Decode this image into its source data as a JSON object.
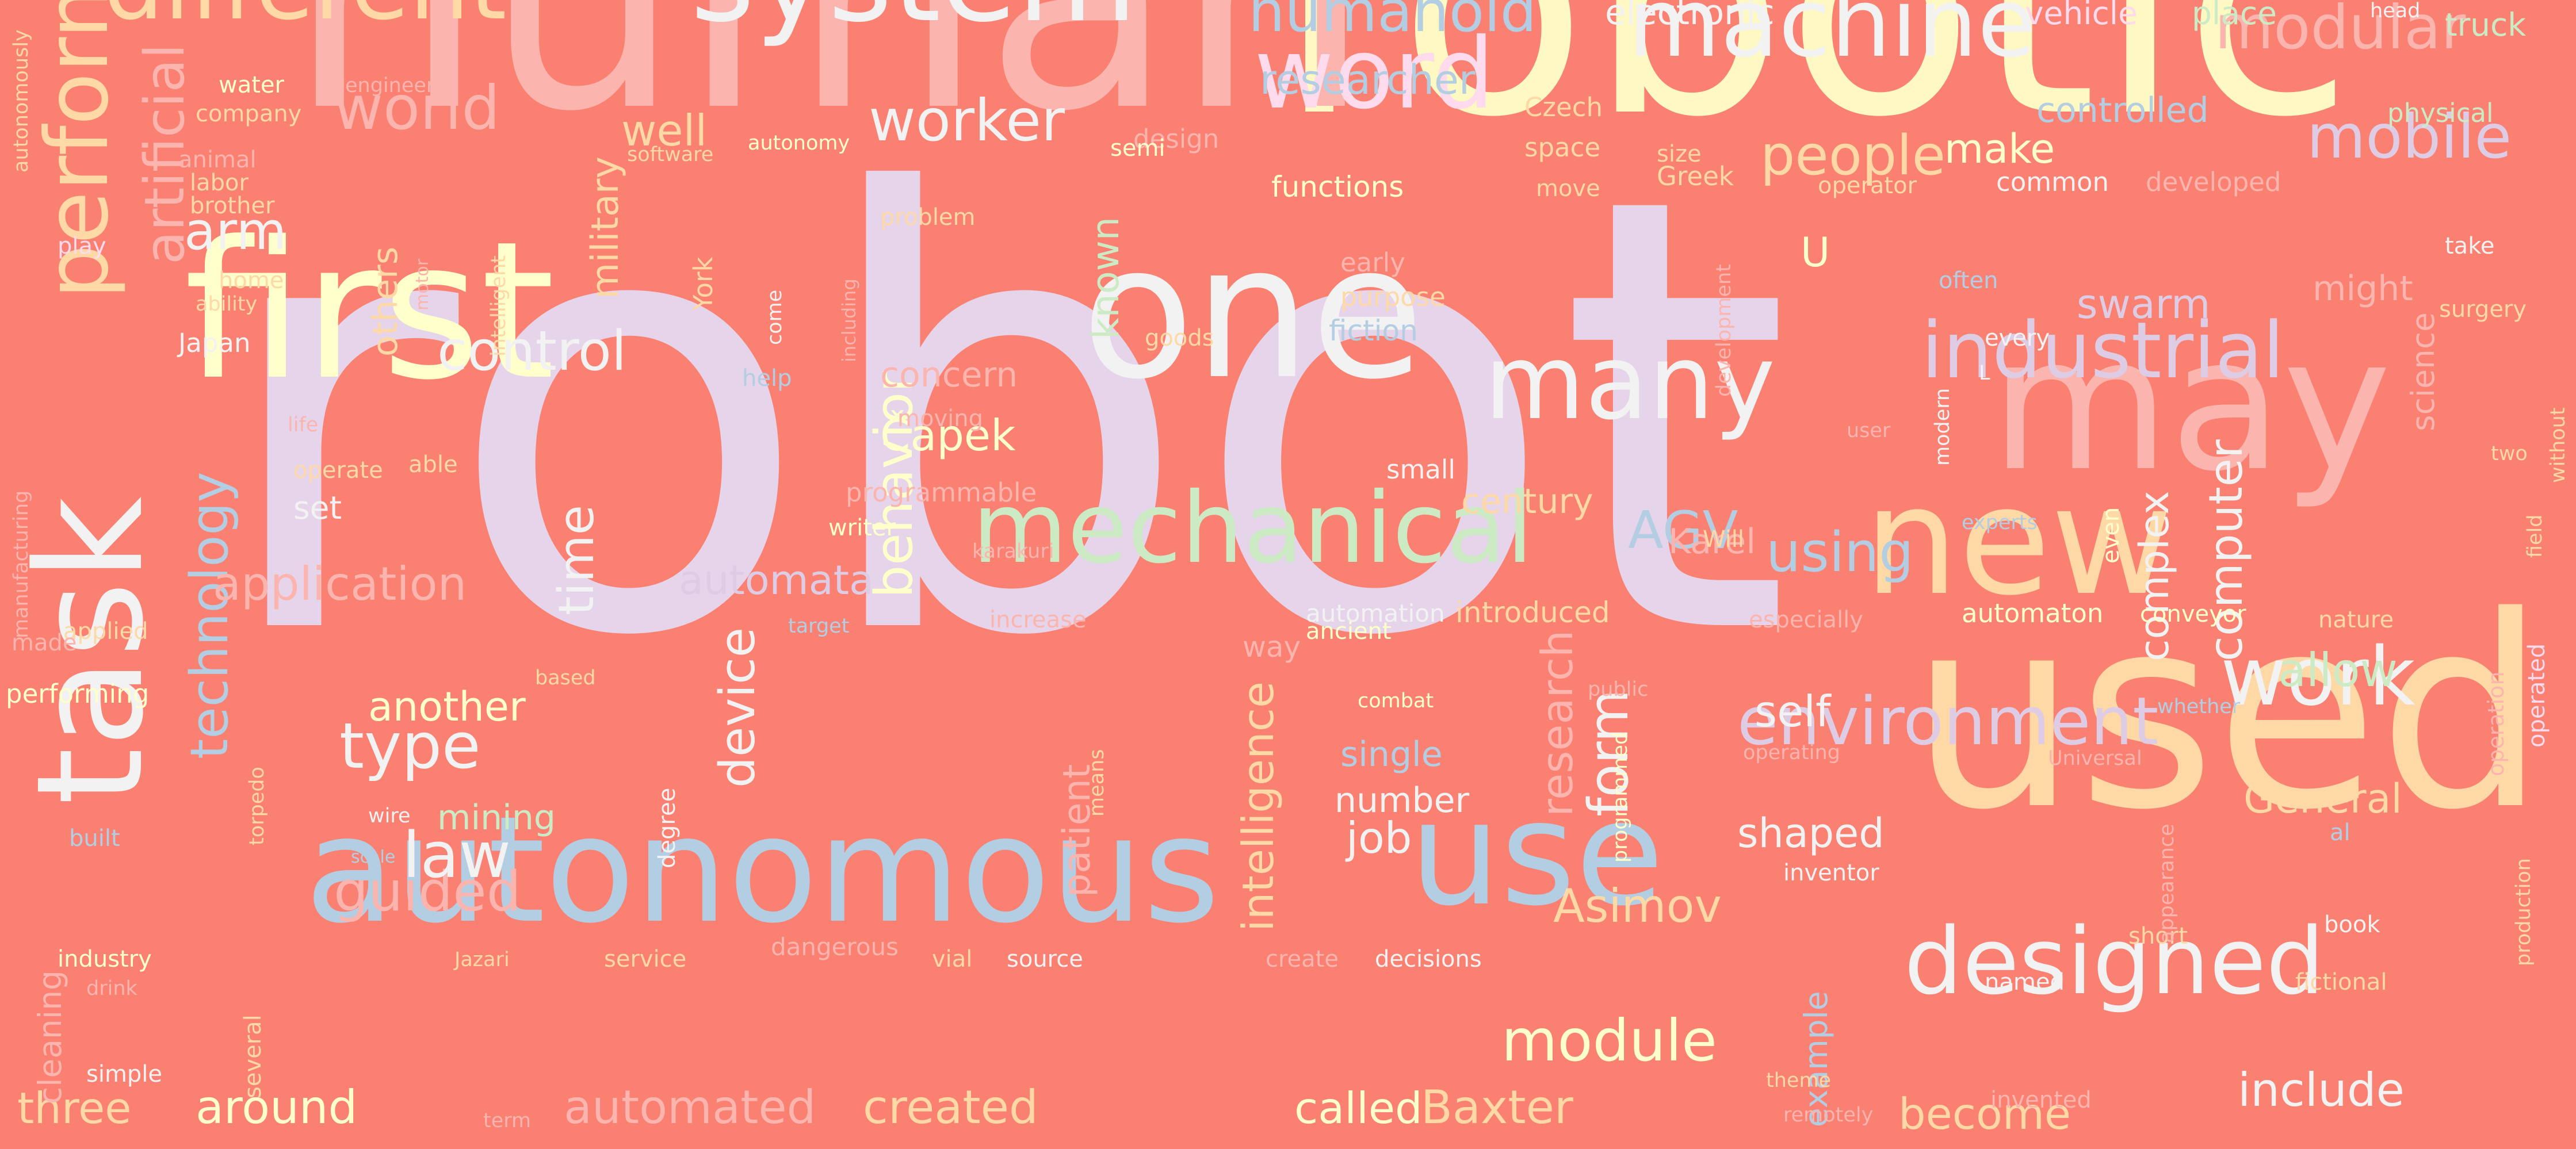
{
  "words": [
    {
      "text": "robot",
      "color": "#e6d5ea"
    },
    {
      "text": "robotic",
      "color": "#fef9c3"
    },
    {
      "text": "human",
      "color": "#fbb4ae"
    },
    {
      "text": "used",
      "color": "#fed9a6"
    },
    {
      "text": "first",
      "color": "#ffffcc"
    },
    {
      "text": "one",
      "color": "#f2f2f2"
    },
    {
      "text": "autonomous",
      "color": "#b3cde3"
    },
    {
      "text": "may",
      "color": "#fbb4ae"
    },
    {
      "text": "use",
      "color": "#b3cde3"
    },
    {
      "text": "new",
      "color": "#fed9a6"
    },
    {
      "text": "system",
      "color": "#f2f2f2"
    },
    {
      "text": "task",
      "color": "#f2f2f2"
    },
    {
      "text": "machine",
      "color": "#f2f2f2"
    },
    {
      "text": "designed",
      "color": "#f2f2f2"
    },
    {
      "text": "mechanical",
      "color": "#ccebc5"
    },
    {
      "text": "different",
      "color": "#fed9a6"
    },
    {
      "text": "perform",
      "color": "#fed9a6"
    },
    {
      "text": "word",
      "color": "#fddaec"
    },
    {
      "text": "many",
      "color": "#f2f2f2"
    },
    {
      "text": "industrial",
      "color": "#decbe4"
    },
    {
      "text": "work",
      "color": "#f2f2f2"
    },
    {
      "text": "environment",
      "color": "#decbe4"
    },
    {
      "text": "modular",
      "color": "#fbb4ae"
    },
    {
      "text": "mobile",
      "color": "#decbe4"
    },
    {
      "text": "humanoid",
      "color": "#b3cde3"
    },
    {
      "text": "module",
      "color": "#ffffcc"
    },
    {
      "text": "world",
      "color": "#fbb4ae"
    },
    {
      "text": "artificial",
      "color": "#fbb4ae"
    },
    {
      "text": "control",
      "color": "#f2f2f2"
    },
    {
      "text": "automated",
      "color": "#fbb4ae"
    },
    {
      "text": "guided",
      "color": "#fbb4ae"
    },
    {
      "text": "technology",
      "color": "#b3cde3"
    },
    {
      "text": "people",
      "color": "#fed9a6"
    },
    {
      "text": "behavior",
      "color": "#ffffcc"
    },
    {
      "text": "include",
      "color": "#f2f2f2"
    },
    {
      "text": "worker",
      "color": "#f2f2f2"
    },
    {
      "text": "application",
      "color": "#fbb4ae"
    },
    {
      "text": "time",
      "color": "#f2f2f2"
    },
    {
      "text": "type",
      "color": "#f2f2f2"
    },
    {
      "text": "law",
      "color": "#f2f2f2"
    },
    {
      "text": "created",
      "color": "#fed9a6"
    },
    {
      "text": "around",
      "color": "#ffffcc"
    },
    {
      "text": "AGV",
      "color": "#b3cde3"
    },
    {
      "text": "using",
      "color": "#b3cde3"
    },
    {
      "text": "computer",
      "color": "#f2f2f2"
    },
    {
      "text": "form",
      "color": "#f2f2f2"
    },
    {
      "text": "device",
      "color": "#f2f2f2"
    },
    {
      "text": "research",
      "color": "#fbb4ae"
    },
    {
      "text": "Baxter",
      "color": "#fed9a6"
    },
    {
      "text": "called",
      "color": "#ffffcc"
    },
    {
      "text": "Asimov",
      "color": "#fed9a6"
    },
    {
      "text": "researcher",
      "color": "#b3cde3"
    },
    {
      "text": "become",
      "color": "#fed9a6"
    },
    {
      "text": "arm",
      "color": "#f2f2f2"
    },
    {
      "text": "intelligence",
      "color": "#fed9a6"
    },
    {
      "text": "automata",
      "color": "#decbe4"
    },
    {
      "text": "three",
      "color": "#fed9a6"
    },
    {
      "text": "Čapek",
      "color": "#ffffcc"
    },
    {
      "text": "another",
      "color": "#ffffcc"
    },
    {
      "text": "self",
      "color": "#f2f2f2"
    },
    {
      "text": "allow",
      "color": "#ccebc5"
    },
    {
      "text": "job",
      "color": "#f2f2f2"
    },
    {
      "text": "well",
      "color": "#fed9a6"
    },
    {
      "text": "swarm",
      "color": "#decbe4"
    },
    {
      "text": "make",
      "color": "#ffffcc"
    },
    {
      "text": "military",
      "color": "#fed9a6"
    },
    {
      "text": "shaped",
      "color": "#f2f2f2"
    },
    {
      "text": "complex",
      "color": "#f2f2f2"
    },
    {
      "text": "General",
      "color": "#fed9a6"
    },
    {
      "text": "known",
      "color": "#ccebc5"
    },
    {
      "text": "Karel",
      "color": "#fbb4ae"
    },
    {
      "text": "mining",
      "color": "#ccebc5"
    },
    {
      "text": "concern",
      "color": "#fbb4ae"
    },
    {
      "text": "others",
      "color": "#fed9a6"
    },
    {
      "text": "patient",
      "color": "#fbb4ae"
    },
    {
      "text": "example",
      "color": "#b3cde3"
    },
    {
      "text": "century",
      "color": "#fed9a6"
    },
    {
      "text": "number",
      "color": "#f2f2f2"
    },
    {
      "text": "single",
      "color": "#b3cde3"
    },
    {
      "text": "electronic",
      "color": "#f2f2f2"
    },
    {
      "text": "controlled",
      "color": "#b3cde3"
    },
    {
      "text": "might",
      "color": "#fbb4ae"
    },
    {
      "text": "truck",
      "color": "#ccebc5"
    },
    {
      "text": "place",
      "color": "#ccebc5"
    },
    {
      "text": "vehicle",
      "color": "#fddaec"
    },
    {
      "text": "set",
      "color": "#f2f2f2"
    },
    {
      "text": "cleaning",
      "color": "#fbb4ae"
    },
    {
      "text": "physical",
      "color": "#ccebc5"
    },
    {
      "text": "science",
      "color": "#fbb4ae"
    },
    {
      "text": "U",
      "color": "#ffffcc"
    },
    {
      "text": "fiction",
      "color": "#b3cde3"
    },
    {
      "text": "purpose",
      "color": "#fed9a6"
    },
    {
      "text": "early",
      "color": "#fbb4ae"
    },
    {
      "text": "functions",
      "color": "#ffffcc"
    },
    {
      "text": "automation",
      "color": "#f2f2f2"
    },
    {
      "text": "introduced",
      "color": "#fed9a6"
    },
    {
      "text": "automaton",
      "color": "#ffffcc"
    },
    {
      "text": "conveyor",
      "color": "#ffffcc"
    },
    {
      "text": "way",
      "color": "#fbb4ae"
    },
    {
      "text": "Japan",
      "color": "#f2f2f2"
    },
    {
      "text": "York",
      "color": "#fed9a6"
    },
    {
      "text": "design",
      "color": "#fbb4ae"
    },
    {
      "text": "space",
      "color": "#fed9a6"
    },
    {
      "text": "Czech",
      "color": "#fed9a6"
    },
    {
      "text": "developed",
      "color": "#fbb4ae"
    },
    {
      "text": "programmable",
      "color": "#fbb4ae"
    },
    {
      "text": "Greek",
      "color": "#fed9a6"
    },
    {
      "text": "operator",
      "color": "#fed9a6"
    },
    {
      "text": "common",
      "color": "#f2f2f2"
    },
    {
      "text": "help",
      "color": "#b3cde3"
    },
    {
      "text": "moving",
      "color": "#fbb4ae"
    },
    {
      "text": "small",
      "color": "#f2f2f2"
    },
    {
      "text": "ancient",
      "color": "#ffffcc"
    },
    {
      "text": "increase",
      "color": "#fbb4ae"
    },
    {
      "text": "operate",
      "color": "#fed9a6"
    },
    {
      "text": "able",
      "color": "#fed9a6"
    },
    {
      "text": "life",
      "color": "#fbb4ae"
    },
    {
      "text": "water",
      "color": "#ffffcc"
    },
    {
      "text": "company",
      "color": "#fed9a6"
    },
    {
      "text": "engineer",
      "color": "#fbb4ae"
    },
    {
      "text": "animal",
      "color": "#fbb4ae"
    },
    {
      "text": "labor",
      "color": "#fed9a6"
    },
    {
      "text": "brother",
      "color": "#fed9a6"
    },
    {
      "text": "software",
      "color": "#fed9a6"
    },
    {
      "text": "autonomy",
      "color": "#ffffcc"
    },
    {
      "text": "semi",
      "color": "#ffffcc"
    },
    {
      "text": "problem",
      "color": "#fed9a6"
    },
    {
      "text": "home",
      "color": "#fed9a6"
    },
    {
      "text": "ability",
      "color": "#fed9a6"
    },
    {
      "text": "motor",
      "color": "#fbb4ae"
    },
    {
      "text": "intelligent",
      "color": "#fed9a6"
    },
    {
      "text": "come",
      "color": "#f2f2f2"
    },
    {
      "text": "including",
      "color": "#fbb4ae"
    },
    {
      "text": "goods",
      "color": "#fed9a6"
    },
    {
      "text": "play",
      "color": "#fddaec"
    },
    {
      "text": "size",
      "color": "#fed9a6"
    },
    {
      "text": "move",
      "color": "#fed9a6"
    },
    {
      "text": "development",
      "color": "#fbb4ae"
    },
    {
      "text": "often",
      "color": "#b3cde3"
    },
    {
      "text": "take",
      "color": "#f2f2f2"
    },
    {
      "text": "surgery",
      "color": "#fed9a6"
    },
    {
      "text": "every",
      "color": "#f2f2f2"
    },
    {
      "text": "L",
      "color": "#f2f2f2"
    },
    {
      "text": "user",
      "color": "#fbb4ae"
    },
    {
      "text": "modern",
      "color": "#f2f2f2"
    },
    {
      "text": "Will",
      "color": "#fed9a6"
    },
    {
      "text": "experts",
      "color": "#b3cde3"
    },
    {
      "text": "two",
      "color": "#fed9a6"
    },
    {
      "text": "field",
      "color": "#fed9a6"
    },
    {
      "text": "without",
      "color": "#fed9a6"
    },
    {
      "text": "even",
      "color": "#ffffcc"
    },
    {
      "text": "especially",
      "color": "#fbb4ae"
    },
    {
      "text": "nature",
      "color": "#fed9a6"
    },
    {
      "text": "operated",
      "color": "#fddaec"
    },
    {
      "text": "operation",
      "color": "#fbb4ae"
    },
    {
      "text": "whether",
      "color": "#b3cde3"
    },
    {
      "text": "combat",
      "color": "#ffffcc"
    },
    {
      "text": "public",
      "color": "#fbb4ae"
    },
    {
      "text": "programmed",
      "color": "#ffffcc"
    },
    {
      "text": "operating",
      "color": "#fbb4ae"
    },
    {
      "text": "Universal",
      "color": "#fbb4ae"
    },
    {
      "text": "al",
      "color": "#b3cde3"
    },
    {
      "text": "means",
      "color": "#fed9a6"
    },
    {
      "text": "wire",
      "color": "#f2f2f2"
    },
    {
      "text": "degree",
      "color": "#f2f2f2"
    },
    {
      "text": "built",
      "color": "#b3cde3"
    },
    {
      "text": "torpedo",
      "color": "#fed9a6"
    },
    {
      "text": "scale",
      "color": "#b3cde3"
    },
    {
      "text": "industry",
      "color": "#ffffcc"
    },
    {
      "text": "drink",
      "color": "#fbb4ae"
    },
    {
      "text": "Jazari",
      "color": "#fed9a6"
    },
    {
      "text": "service",
      "color": "#fed9a6"
    },
    {
      "text": "dangerous",
      "color": "#fbb4ae"
    },
    {
      "text": "vial",
      "color": "#fed9a6"
    },
    {
      "text": "source",
      "color": "#f2f2f2"
    },
    {
      "text": "create",
      "color": "#fbb4ae"
    },
    {
      "text": "decisions",
      "color": "#f2f2f2"
    },
    {
      "text": "inventor",
      "color": "#f2f2f2"
    },
    {
      "text": "short",
      "color": "#fed9a6"
    },
    {
      "text": "book",
      "color": "#f2f2f2"
    },
    {
      "text": "appearance",
      "color": "#fbb4ae"
    },
    {
      "text": "production",
      "color": "#fed9a6"
    },
    {
      "text": "named",
      "color": "#f2f2f2"
    },
    {
      "text": "fictional",
      "color": "#fed9a6"
    },
    {
      "text": "theme",
      "color": "#fed9a6"
    },
    {
      "text": "remotely",
      "color": "#fbb4ae"
    },
    {
      "text": "invented",
      "color": "#fbb4ae"
    },
    {
      "text": "simple",
      "color": "#f2f2f2"
    },
    {
      "text": "several",
      "color": "#fed9a6"
    },
    {
      "text": "term",
      "color": "#fbb4ae"
    },
    {
      "text": "performing",
      "color": "#ffffcc"
    },
    {
      "text": "applied",
      "color": "#fed9a6"
    },
    {
      "text": "made",
      "color": "#fbb4ae"
    },
    {
      "text": "based",
      "color": "#fed9a6"
    },
    {
      "text": "karakuri",
      "color": "#fbb4ae"
    },
    {
      "text": "writer",
      "color": "#ffffcc"
    },
    {
      "text": "target",
      "color": "#b3cde3"
    },
    {
      "text": "autonomously",
      "color": "#fed9a6"
    },
    {
      "text": "manufacturing",
      "color": "#fbb4ae"
    },
    {
      "text": "head",
      "color": "#f2f2f2"
    }
  ]
}
